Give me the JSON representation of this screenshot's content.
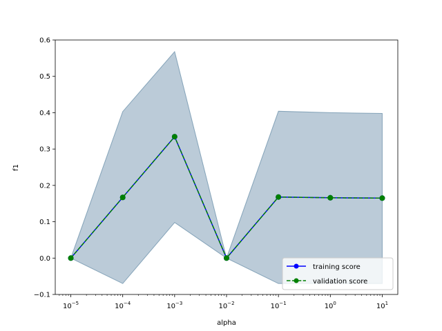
{
  "chart_data": {
    "type": "line",
    "title": "",
    "xlabel": "alpha",
    "ylabel": "f1",
    "x_scale": "log",
    "x": [
      1e-05,
      0.0001,
      0.001,
      0.01,
      0.1,
      1,
      10
    ],
    "x_tick_labels": [
      {
        "base": "10",
        "exp": "−5"
      },
      {
        "base": "10",
        "exp": "−4"
      },
      {
        "base": "10",
        "exp": "−3"
      },
      {
        "base": "10",
        "exp": "−2"
      },
      {
        "base": "10",
        "exp": "−1"
      },
      {
        "base": "10",
        "exp": "0"
      },
      {
        "base": "10",
        "exp": "1"
      }
    ],
    "ylim": [
      -0.1,
      0.6
    ],
    "y_ticks": [
      "−0.1",
      "0.0",
      "0.1",
      "0.2",
      "0.3",
      "0.4",
      "0.5",
      "0.6"
    ],
    "grid": false,
    "legend_position": "lower-right",
    "band": {
      "upper": [
        0.0,
        0.403,
        0.568,
        0.0,
        0.404,
        0.4,
        0.398
      ],
      "lower": [
        0.0,
        -0.07,
        0.098,
        0.0,
        -0.07,
        -0.07,
        -0.07
      ],
      "color": "#8da9be",
      "opacity": 0.6
    },
    "series": [
      {
        "name": "training score",
        "values": [
          0.0,
          0.167,
          0.334,
          0.0,
          0.168,
          0.166,
          0.165
        ],
        "color": "#0000ff",
        "style": "solid",
        "marker": "circle"
      },
      {
        "name": "validation score",
        "values": [
          0.0,
          0.167,
          0.334,
          0.0,
          0.168,
          0.166,
          0.165
        ],
        "color": "#008000",
        "style": "dashed",
        "marker": "circle"
      }
    ]
  }
}
